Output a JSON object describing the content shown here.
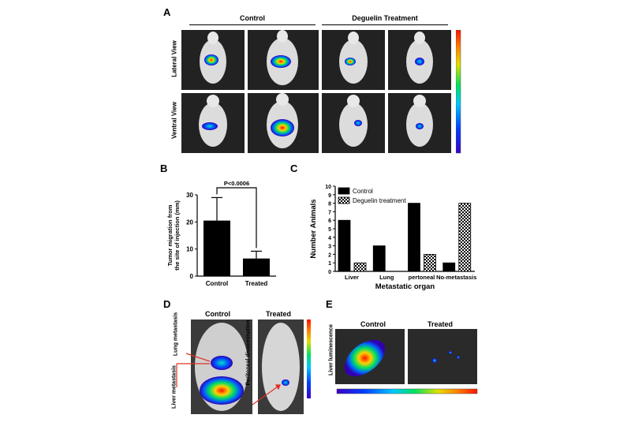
{
  "panels": {
    "A": {
      "letter": "A",
      "group_left": "Control",
      "group_right": "Deguelin Treatment",
      "row1": "Lateral View",
      "row2": "Ventral View"
    },
    "D": {
      "letter": "D",
      "col_left": "Control",
      "col_right": "Treated",
      "label_lung": "Lung metastasis",
      "label_liver": "Liver metastasis",
      "label_peritoneal": "Peritoneal dissemination"
    },
    "E": {
      "letter": "E",
      "col_left": "Control",
      "col_right": "Treated",
      "ylabel": "Liver luminescence"
    }
  },
  "colors": {
    "bar_fill": "#000000",
    "luminescence_scale": [
      "#3b00c8",
      "#0040ff",
      "#00c8ff",
      "#00e060",
      "#e0e000",
      "#ff8000",
      "#ff1000"
    ]
  },
  "chart_data": [
    {
      "panel": "B",
      "type": "bar",
      "categories": [
        "Control",
        "Treated"
      ],
      "values": [
        20.5,
        6.5
      ],
      "errors": [
        8.5,
        2.7
      ],
      "ylabel": "Tumor migration from the site of injection (mm)",
      "xlabel": "",
      "ylim": [
        0,
        30
      ],
      "yticks": [
        0,
        10,
        20,
        30
      ],
      "annotation": "P<0.0006",
      "grid": false
    },
    {
      "panel": "C",
      "type": "bar",
      "categories": [
        "Liver",
        "Lung",
        "pertoneal",
        "No-metastasis"
      ],
      "series": [
        {
          "name": "Control",
          "values": [
            6,
            3,
            8,
            1
          ]
        },
        {
          "name": "Deguelin treatment",
          "values": [
            1,
            0,
            2,
            8
          ]
        }
      ],
      "xlabel": "Metastatic organ",
      "ylabel": "Number Animals",
      "ylim": [
        0,
        10
      ],
      "yticks": [
        0,
        1,
        2,
        3,
        4,
        5,
        6,
        7,
        8,
        9,
        10
      ],
      "legend_position": "top-left",
      "grid": false
    }
  ]
}
